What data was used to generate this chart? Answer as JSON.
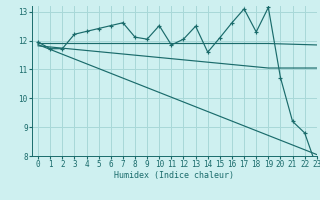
{
  "xlabel": "Humidex (Indice chaleur)",
  "bg_color": "#cef0f0",
  "grid_color": "#a8d8d8",
  "line_color": "#1a6b6b",
  "xlim": [
    -0.5,
    23
  ],
  "ylim": [
    8,
    13.2
  ],
  "yticks": [
    8,
    9,
    10,
    11,
    12,
    13
  ],
  "xticks": [
    0,
    1,
    2,
    3,
    4,
    5,
    6,
    7,
    8,
    9,
    10,
    11,
    12,
    13,
    14,
    15,
    16,
    17,
    18,
    19,
    20,
    21,
    22,
    23
  ],
  "line1_x": [
    0,
    1,
    2,
    3,
    4,
    5,
    6,
    7,
    8,
    9,
    10,
    11,
    12,
    13,
    14,
    15,
    16,
    17,
    18,
    19,
    20,
    21,
    22,
    23
  ],
  "line1_y": [
    11.95,
    11.72,
    11.72,
    12.22,
    12.32,
    12.42,
    12.52,
    12.62,
    12.12,
    12.05,
    12.52,
    11.85,
    12.05,
    12.5,
    11.6,
    12.1,
    12.62,
    13.1,
    12.3,
    13.15,
    10.72,
    9.2,
    8.8,
    7.6
  ],
  "line2_x": [
    0,
    19,
    23
  ],
  "line2_y": [
    11.9,
    11.9,
    11.85
  ],
  "line3_x": [
    0,
    19,
    23
  ],
  "line3_y": [
    11.82,
    11.05,
    11.05
  ],
  "line4_x": [
    0,
    23
  ],
  "line4_y": [
    11.86,
    8.05
  ]
}
